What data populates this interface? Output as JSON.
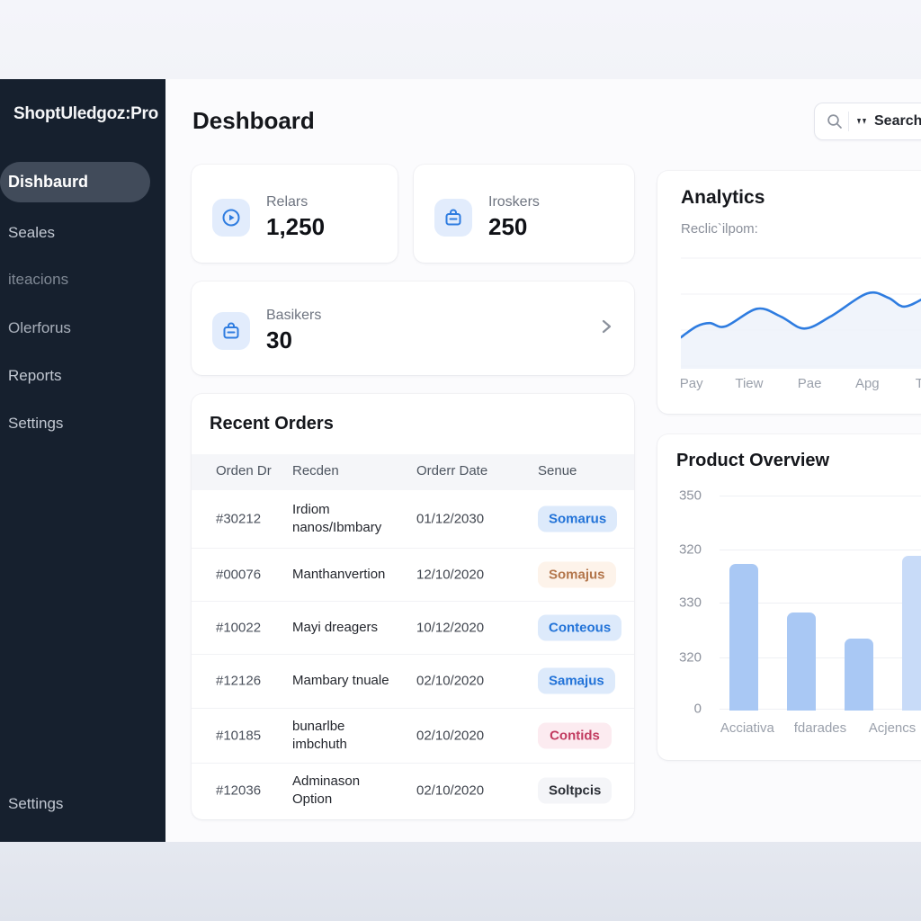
{
  "app": {
    "logo": "ShoptUledgoz:Pro"
  },
  "sidebar": {
    "items": [
      {
        "label": "Dishbaurd",
        "active": true
      },
      {
        "label": "Seales"
      },
      {
        "label": "iteacions"
      },
      {
        "label": "Olerforus"
      },
      {
        "label": "Reports"
      },
      {
        "label": "Settings"
      }
    ],
    "bottom_item": "Settings"
  },
  "header": {
    "title": "Deshboard",
    "search_label": "Search"
  },
  "stats": [
    {
      "label": "Relars",
      "value": "1,250",
      "icon": "clock-play-icon"
    },
    {
      "label": "Iroskers",
      "value": "250",
      "icon": "bag-icon"
    },
    {
      "label": "Basikers",
      "value": "30",
      "icon": "bag-icon"
    }
  ],
  "orders": {
    "title": "Recent Orders",
    "columns": [
      "Orden Dr",
      "Recden",
      "Orderr Date",
      "Senue"
    ],
    "rows": [
      {
        "id": "#30212",
        "name": "Irdiom\nnanos/Ibmbary",
        "date": "01/12/2030",
        "status": "Somarus",
        "status_bg": "#ddeafb",
        "status_fg": "#2273d8"
      },
      {
        "id": "#00076",
        "name": "Manthanvertion",
        "date": "12/10/2020",
        "status": "Somajus",
        "status_bg": "#fdf3ea",
        "status_fg": "#b3764b"
      },
      {
        "id": "#10022",
        "name": "Mayi dreagers",
        "date": "10/12/2020",
        "status": "Conteous",
        "status_bg": "#ddeafb",
        "status_fg": "#2273d8"
      },
      {
        "id": "#12126",
        "name": "Mambary tnuale",
        "date": "02/10/2020",
        "status": "Samajus",
        "status_bg": "#ddeafb",
        "status_fg": "#2273d8"
      },
      {
        "id": "#10185",
        "name": "bunarlbe\nimbchuth",
        "date": "02/10/2020",
        "status": "Contids",
        "status_bg": "#fcebf0",
        "status_fg": "#c23b60"
      },
      {
        "id": "#12036",
        "name": "Adminason\nOption",
        "date": "02/10/2020",
        "status": "Soltpcis",
        "status_bg": "#f4f5f8",
        "status_fg": "#2b2f36"
      }
    ]
  },
  "analytics": {
    "title": "Analytics",
    "subtitle": "Reclic`ilpom:"
  },
  "product_overview": {
    "title": "Product Overview"
  },
  "colors": {
    "accent": "#2e7ce0",
    "sidebar_bg": "#16202e",
    "sidebar_active": "#414b5a",
    "icon_tile": "#e2ecfc",
    "status_blue": "#2273d8",
    "status_orange": "#b3764b",
    "status_red": "#c23b60"
  },
  "chart_data": [
    {
      "type": "line",
      "title": "Analytics",
      "x_labels": [
        "Pay",
        "Tiew",
        "Pae",
        "Apg",
        "Tht"
      ],
      "points_pct": [
        [
          0,
          27
        ],
        [
          6,
          37
        ],
        [
          11,
          40
        ],
        [
          17,
          37
        ],
        [
          29,
          53
        ],
        [
          38,
          46
        ],
        [
          47,
          35
        ],
        [
          57,
          46
        ],
        [
          71,
          67
        ],
        [
          79,
          63
        ],
        [
          85,
          55
        ],
        [
          93,
          63
        ],
        [
          100,
          70
        ]
      ],
      "line_color": "#2e7ce0",
      "area_color": "#edf2fa",
      "grid": true,
      "legend": false,
      "note": "y values are relative percent of plot height; no y-axis labels shown"
    },
    {
      "type": "bar",
      "title": "Product Overview",
      "categories": [
        "Acciativa",
        "fdarades",
        "Acjencs",
        ""
      ],
      "values": [
        238,
        159,
        117,
        252
      ],
      "y_ticks": [
        "350",
        "320",
        "330",
        "320",
        "0"
      ],
      "ylim": [
        0,
        350
      ],
      "bar_colors": [
        "#a9c8f4",
        "#a9c8f4",
        "#a9c8f4",
        "#c8dbf8"
      ],
      "grid": true,
      "legend": false
    }
  ]
}
